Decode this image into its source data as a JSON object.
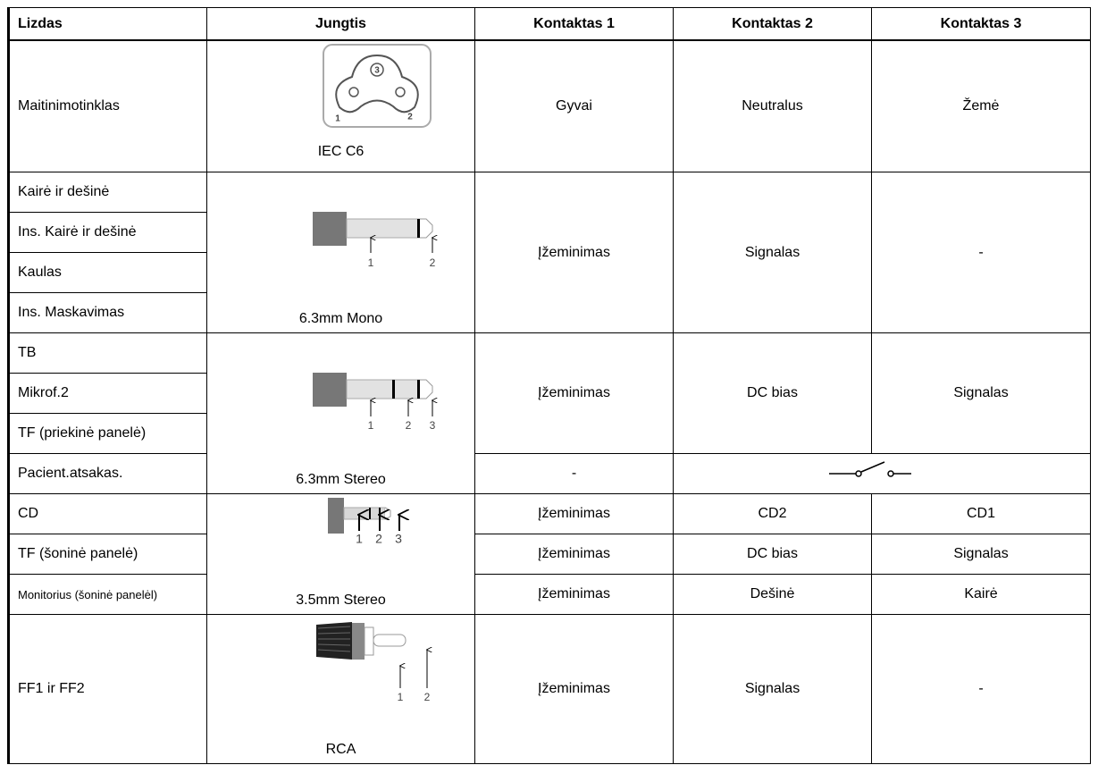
{
  "table": {
    "header": [
      "Lizdas",
      "Jungtis",
      "Kontaktas 1",
      "Kontaktas 2",
      "Kontaktas 3"
    ],
    "groups": [
      {
        "socket": "Maitinimotinklas",
        "connector": "IEC C6",
        "pins": [
          "3",
          "1",
          "2"
        ],
        "contacts": [
          "Gyvai",
          "Neutralus",
          "Žemė"
        ]
      },
      {
        "sockets": [
          "Kairė ir dešinė",
          "Ins. Kairė ir dešinė",
          "Kaulas",
          "Ins. Maskavimas"
        ],
        "connector": "6.3mm Mono",
        "pins": [
          "1",
          "2"
        ],
        "contacts": [
          "Įžeminimas",
          "Signalas",
          "-"
        ]
      },
      {
        "sockets": [
          "TB",
          "Mikrof.2",
          "TF (priekinė panelė)"
        ],
        "connector": "6.3mm Stereo",
        "pins": [
          "1",
          "2",
          "3"
        ],
        "contacts": [
          "Įžeminimas",
          "DC bias",
          "Signalas"
        ]
      },
      {
        "socket": "Pacient.atsakas.",
        "contacts": [
          "-"
        ]
      },
      {
        "rows": [
          {
            "socket": "CD",
            "contacts": [
              "Įžeminimas",
              "CD2",
              "CD1"
            ]
          },
          {
            "socket": "TF (šoninė panelė)",
            "contacts": [
              "Įžeminimas",
              "DC bias",
              "Signalas"
            ]
          },
          {
            "socket": "Monitorius (šoninė panelėl)",
            "contacts": [
              "Įžeminimas",
              "Dešinė",
              "Kairė"
            ]
          }
        ],
        "connector": "3.5mm Stereo",
        "pins": [
          "1",
          "2",
          "3"
        ]
      },
      {
        "socket": "FF1 ir FF2",
        "connector": "RCA",
        "pins": [
          "1",
          "2"
        ],
        "contacts": [
          "Įžeminimas",
          "Signalas",
          "-"
        ]
      }
    ]
  }
}
